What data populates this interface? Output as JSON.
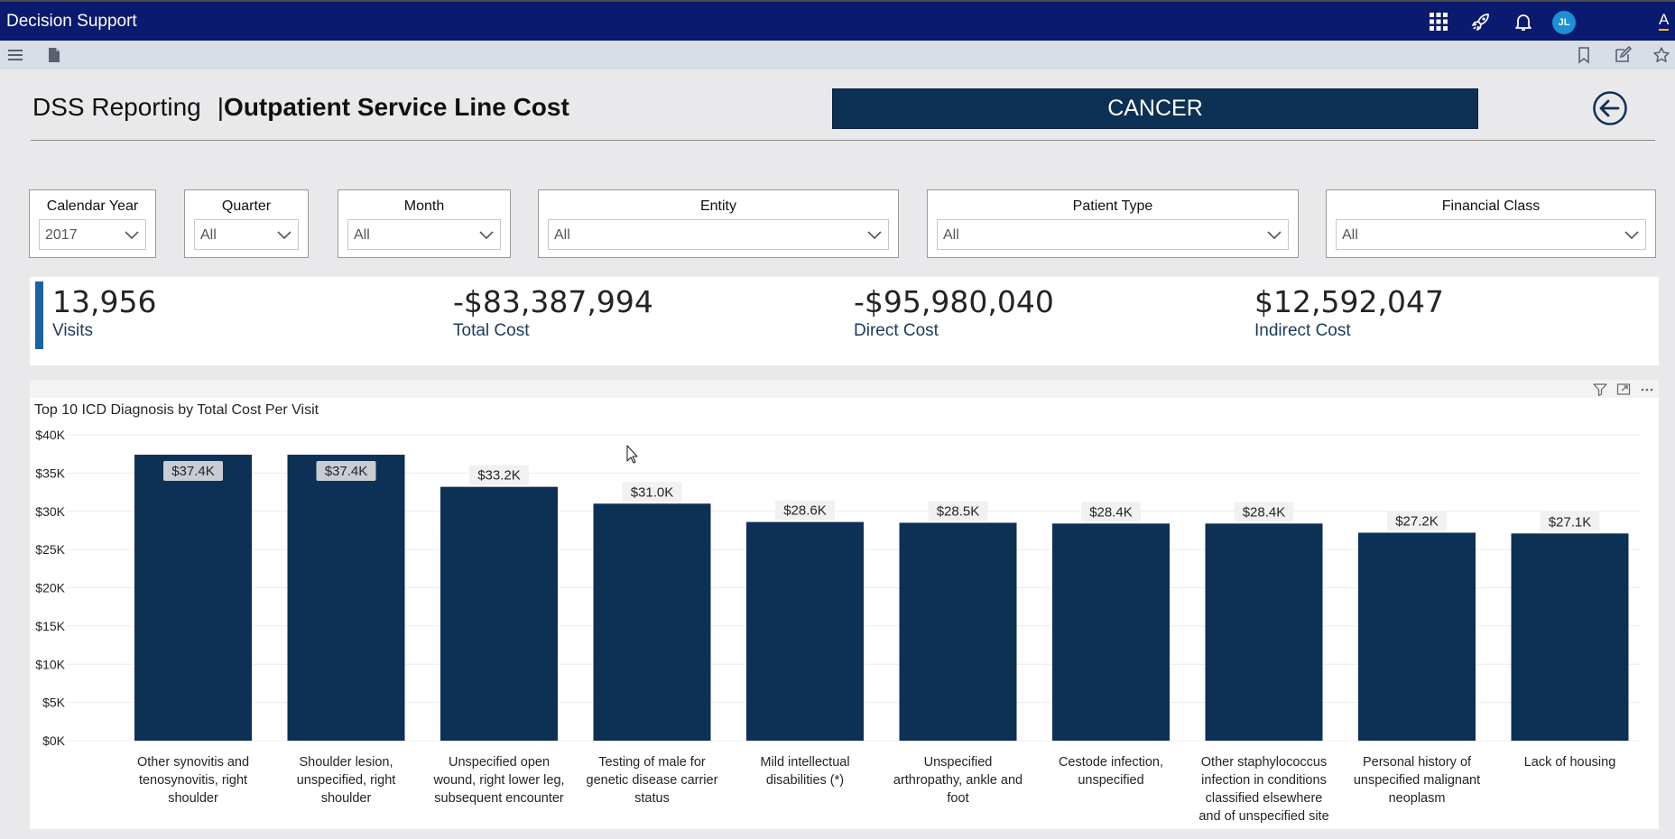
{
  "app": {
    "title": "Decision Support",
    "avatar_initials": "JL",
    "edge_text": "A"
  },
  "header": {
    "title_prefix": "DSS Reporting",
    "title_sep": "|",
    "title_main": "Outpatient Service Line Cost",
    "service_line": "CANCER"
  },
  "filters": [
    {
      "label": "Calendar Year",
      "value": "2017"
    },
    {
      "label": "Quarter",
      "value": "All"
    },
    {
      "label": "Month",
      "value": "All"
    },
    {
      "label": "Entity",
      "value": "All"
    },
    {
      "label": "Patient Type",
      "value": "All"
    },
    {
      "label": "Financial Class",
      "value": "All"
    }
  ],
  "kpis": [
    {
      "value": "13,956",
      "label": "Visits"
    },
    {
      "value": "-$83,387,994",
      "label": "Total Cost"
    },
    {
      "value": "-$95,980,040",
      "label": "Direct Cost"
    },
    {
      "value": "$12,592,047",
      "label": "Indirect Cost"
    }
  ],
  "colors": {
    "bar": "#0d3055",
    "appbar": "#0a1a6e",
    "kpi_accent": "#1a62a6"
  },
  "chart_data": {
    "type": "bar",
    "title": "Top 10 ICD Diagnosis by Total Cost Per Visit",
    "categories": [
      "Other synovitis and tenosynovitis, right shoulder",
      "Shoulder lesion, unspecified, right shoulder",
      "Unspecified open wound, right lower leg, subsequent encounter",
      "Testing of male for genetic disease carrier status",
      "Mild intellectual disabilities (*)",
      "Unspecified arthropathy, ankle and foot",
      "Cestode infection, unspecified",
      "Other staphylococcus infection in conditions classified elsewhere and of unspecified site",
      "Personal history of unspecified malignant neoplasm",
      "Lack of housing"
    ],
    "values": [
      37400,
      37400,
      33200,
      31000,
      28600,
      28500,
      28400,
      28400,
      27200,
      27100
    ],
    "data_labels": [
      "$37.4K",
      "$37.4K",
      "$33.2K",
      "$31.0K",
      "$28.6K",
      "$28.5K",
      "$28.4K",
      "$28.4K",
      "$27.2K",
      "$27.1K"
    ],
    "highlighted_labels": [
      0,
      1
    ],
    "category_lines": [
      [
        "Other synovitis and",
        "tenosynovitis, right",
        "shoulder"
      ],
      [
        "Shoulder lesion,",
        "unspecified, right",
        "shoulder"
      ],
      [
        "Unspecified open",
        "wound, right lower leg,",
        "subsequent encounter"
      ],
      [
        "Testing of male for",
        "genetic disease carrier",
        "status"
      ],
      [
        "Mild intellectual",
        "disabilities (*)"
      ],
      [
        "Unspecified",
        "arthropathy, ankle and",
        "foot"
      ],
      [
        "Cestode infection,",
        "unspecified"
      ],
      [
        "Other staphylococcus",
        "infection in conditions",
        "classified elsewhere",
        "and of unspecified site"
      ],
      [
        "Personal history of",
        "unspecified malignant",
        "neoplasm"
      ],
      [
        "Lack of housing"
      ]
    ],
    "ylim": [
      0,
      40000
    ],
    "yticks": [
      0,
      5000,
      10000,
      15000,
      20000,
      25000,
      30000,
      35000,
      40000
    ],
    "ytick_labels": [
      "$0K",
      "$5K",
      "$10K",
      "$15K",
      "$20K",
      "$25K",
      "$30K",
      "$35K",
      "$40K"
    ],
    "grid": true
  }
}
